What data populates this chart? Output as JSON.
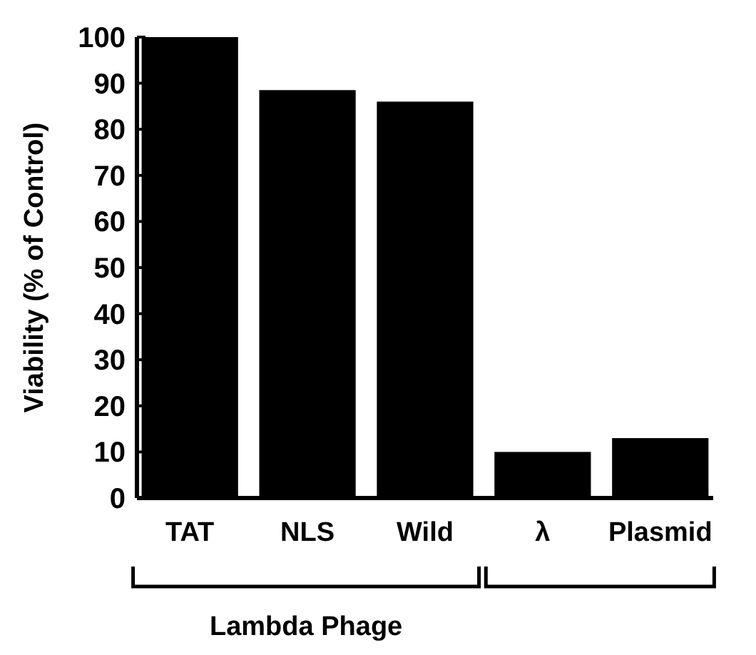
{
  "chart_data": {
    "type": "bar",
    "ylabel": "Viability (% of Control)",
    "categories": [
      "TAT",
      "NLS",
      "Wild",
      "λ",
      "Plasmid"
    ],
    "values": [
      100,
      88.5,
      86,
      10,
      13
    ],
    "color": "#000000",
    "ylim": [
      0,
      100
    ],
    "yticks": [
      0,
      10,
      20,
      30,
      40,
      50,
      60,
      70,
      80,
      90,
      100
    ],
    "annotations": [
      "Lambda Phage"
    ]
  }
}
